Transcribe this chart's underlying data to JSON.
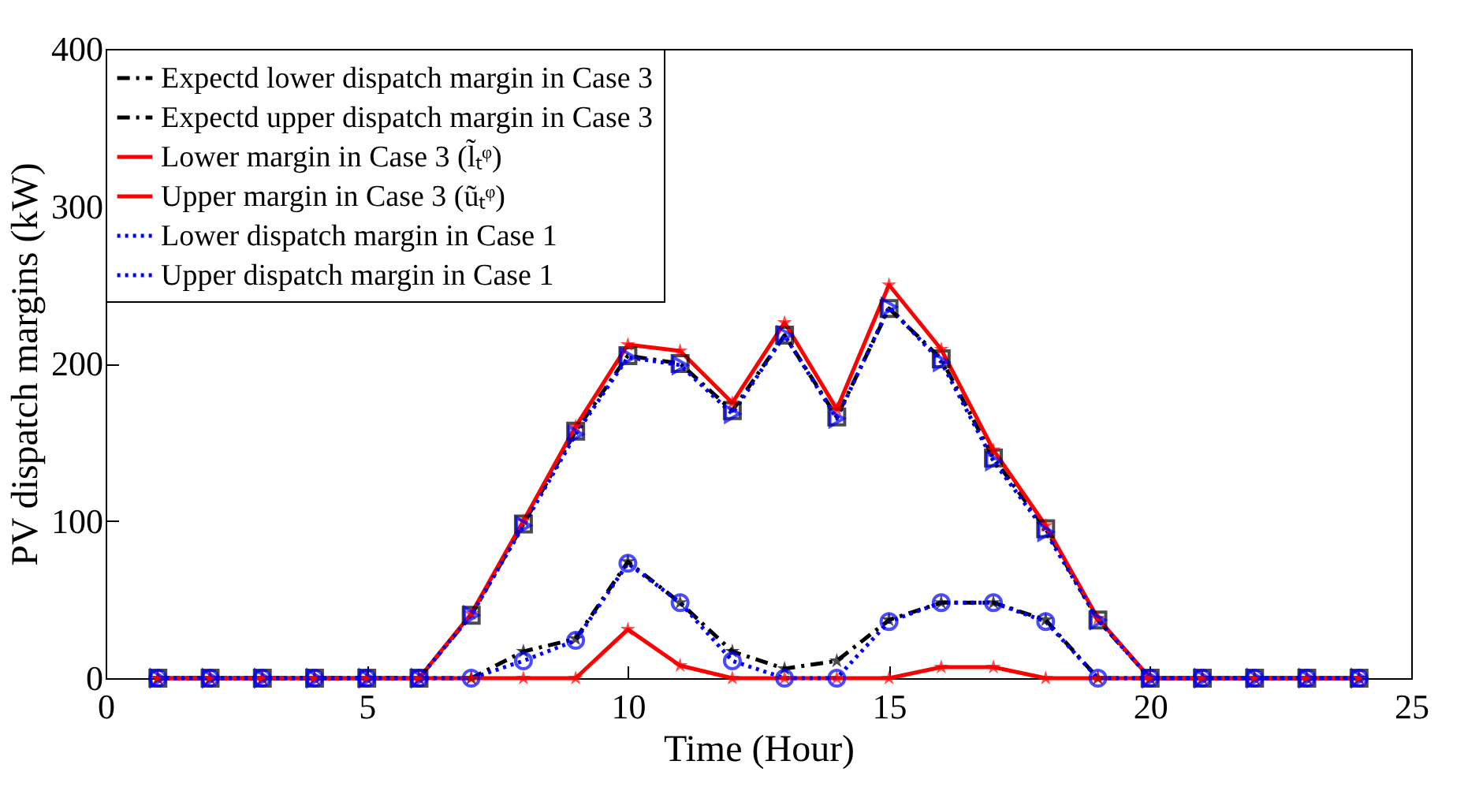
{
  "chart_data": {
    "type": "line",
    "xlabel": "Time (Hour)",
    "ylabel": "PV dispatch margins (kW)",
    "x": [
      1,
      2,
      3,
      4,
      5,
      6,
      7,
      8,
      9,
      10,
      11,
      12,
      13,
      14,
      15,
      16,
      17,
      18,
      19,
      20,
      21,
      22,
      23,
      24
    ],
    "series": [
      {
        "name": "Expectd lower dispatch margin in Case 3",
        "color": "#000000",
        "marker": "star",
        "line_style": "dashed",
        "values": [
          0,
          0,
          0,
          0,
          0,
          0,
          0,
          17,
          25,
          74,
          48,
          17,
          6,
          11,
          37,
          48,
          48,
          37,
          0,
          0,
          0,
          0,
          0,
          0
        ]
      },
      {
        "name": "Expectd upper dispatch margin in Case 3",
        "color": "#000000",
        "marker": "square",
        "line_style": "dashed",
        "values": [
          0,
          0,
          0,
          0,
          0,
          0,
          40,
          98,
          157,
          205,
          200,
          170,
          218,
          166,
          235,
          203,
          140,
          95,
          37,
          0,
          0,
          0,
          0,
          0
        ]
      },
      {
        "name": "Lower margin in Case 3 (l̃ₜᵠ)",
        "color": "#ff0000",
        "marker": "star",
        "line_style": "solid",
        "values": [
          0,
          0,
          0,
          0,
          0,
          0,
          0,
          0,
          0,
          31,
          8,
          0,
          0,
          0,
          0,
          7,
          7,
          0,
          0,
          0,
          0,
          0,
          0,
          0
        ]
      },
      {
        "name": "Upper margin in Case 3 (ũₜᵠ)",
        "color": "#ff0000",
        "marker": "star",
        "line_style": "solid",
        "values": [
          0,
          0,
          0,
          0,
          0,
          0,
          41,
          100,
          160,
          212,
          208,
          175,
          226,
          171,
          250,
          209,
          145,
          97,
          38,
          0,
          0,
          0,
          0,
          0
        ]
      },
      {
        "name": "Lower dispatch margin in Case 1",
        "color": "#0000ff",
        "marker": "circle",
        "line_style": "dotted",
        "values": [
          0,
          0,
          0,
          0,
          0,
          0,
          0,
          11,
          24,
          73,
          48,
          11,
          0,
          0,
          36,
          48,
          48,
          36,
          0,
          0,
          0,
          0,
          0,
          0
        ]
      },
      {
        "name": "Upper dispatch margin in Case 1",
        "color": "#0000ff",
        "marker": "triangle",
        "line_style": "dotted",
        "values": [
          0,
          0,
          0,
          0,
          0,
          0,
          40,
          97,
          155,
          204,
          199,
          168,
          218,
          165,
          236,
          201,
          138,
          93,
          37,
          0,
          0,
          0,
          0,
          0
        ]
      }
    ],
    "xlim": [
      0,
      25
    ],
    "xticks": [
      0,
      5,
      10,
      15,
      20,
      25
    ],
    "ylim": [
      0,
      400
    ],
    "yticks": [
      0,
      100,
      200,
      300,
      400
    ],
    "legend": "top left",
    "grid": false
  }
}
